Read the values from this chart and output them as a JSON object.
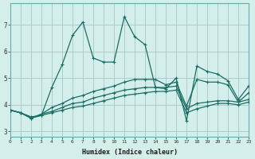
{
  "xlabel": "Humidex (Indice chaleur)",
  "ylabel": "",
  "background_color": "#d4eeec",
  "grid_color": "#aacccc",
  "line_color": "#1a6e62",
  "x": [
    0,
    1,
    2,
    3,
    4,
    5,
    6,
    7,
    8,
    9,
    10,
    11,
    12,
    13,
    14,
    15,
    16,
    17,
    18,
    19,
    20,
    21,
    22,
    23
  ],
  "line1": [
    3.8,
    3.7,
    3.55,
    3.6,
    4.65,
    5.5,
    6.6,
    7.1,
    5.75,
    5.6,
    5.6,
    7.3,
    6.55,
    6.25,
    4.65,
    4.6,
    5.0,
    3.4,
    5.45,
    5.25,
    5.15,
    4.9,
    4.2,
    4.7
  ],
  "line2": [
    3.8,
    3.7,
    3.5,
    3.65,
    3.75,
    3.9,
    4.05,
    4.1,
    4.25,
    4.35,
    4.45,
    4.55,
    4.6,
    4.65,
    4.65,
    4.65,
    4.7,
    3.85,
    4.05,
    4.1,
    4.15,
    4.15,
    4.1,
    4.2
  ],
  "line3": [
    3.8,
    3.7,
    3.5,
    3.6,
    3.7,
    3.8,
    3.9,
    3.95,
    4.05,
    4.15,
    4.25,
    4.35,
    4.4,
    4.45,
    4.5,
    4.5,
    4.55,
    3.7,
    3.85,
    3.95,
    4.05,
    4.05,
    4.0,
    4.1
  ],
  "line4": [
    3.8,
    3.7,
    3.5,
    3.65,
    3.9,
    4.05,
    4.25,
    4.35,
    4.5,
    4.6,
    4.7,
    4.85,
    4.95,
    4.95,
    4.95,
    4.75,
    4.85,
    3.95,
    4.95,
    4.85,
    4.85,
    4.75,
    4.1,
    4.45
  ],
  "ylim": [
    2.8,
    7.8
  ],
  "xlim": [
    0,
    23
  ],
  "yticks": [
    3,
    4,
    5,
    6,
    7
  ],
  "xticks": [
    0,
    1,
    2,
    3,
    4,
    5,
    6,
    7,
    8,
    9,
    10,
    11,
    12,
    13,
    14,
    15,
    16,
    17,
    18,
    19,
    20,
    21,
    22,
    23
  ]
}
